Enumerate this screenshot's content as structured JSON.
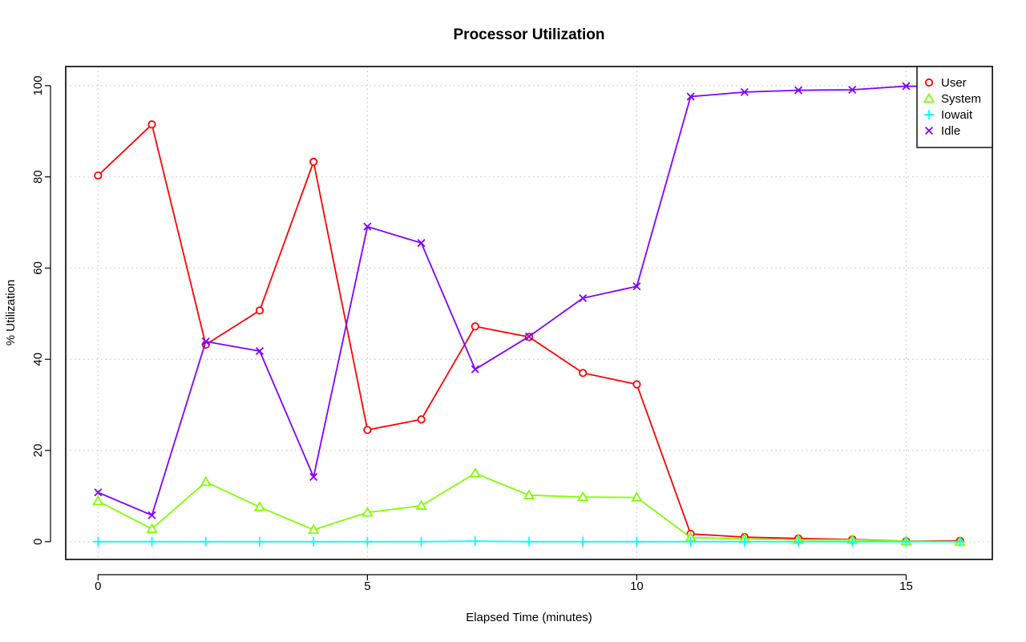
{
  "chart_data": {
    "type": "line",
    "title": "Processor Utilization",
    "xlabel": "Elapsed Time (minutes)",
    "ylabel": "% Utilization",
    "x": [
      0,
      1,
      2,
      3,
      4,
      5,
      6,
      7,
      8,
      9,
      10,
      11,
      12,
      13,
      14,
      15,
      16
    ],
    "xlim": [
      -0.6,
      16.6
    ],
    "ylim": [
      -3.9,
      104.2
    ],
    "xticks": [
      0,
      5,
      10,
      15
    ],
    "yticks": [
      0,
      20,
      40,
      60,
      80,
      100
    ],
    "xtick_labels": [
      "0",
      "5",
      "10",
      "15"
    ],
    "ytick_labels": [
      "0",
      "20",
      "40",
      "60",
      "80",
      "100"
    ],
    "grid": true,
    "legend_position": "top-right",
    "series": [
      {
        "name": "User",
        "color": "#ff0000",
        "marker": "circle",
        "values": [
          80.3,
          91.5,
          43.2,
          50.7,
          83.3,
          24.5,
          26.8,
          47.2,
          44.9,
          37.0,
          34.5,
          1.7,
          1.0,
          0.7,
          0.5,
          0.1,
          0.2
        ]
      },
      {
        "name": "System",
        "color": "#80ff00",
        "marker": "triangle",
        "values": [
          8.9,
          2.8,
          13.1,
          7.6,
          2.6,
          6.4,
          7.9,
          15.0,
          10.2,
          9.8,
          9.7,
          0.9,
          0.6,
          0.4,
          0.4,
          0.1,
          0.0
        ]
      },
      {
        "name": "Iowait",
        "color": "#00ffff",
        "marker": "plus",
        "values": [
          0.0,
          0.0,
          0.0,
          0.0,
          0.0,
          0.0,
          0.0,
          0.1,
          0.0,
          0.0,
          0.0,
          0.0,
          0.0,
          0.0,
          0.0,
          0.0,
          0.0
        ]
      },
      {
        "name": "Idle",
        "color": "#8000ff",
        "marker": "x",
        "values": [
          10.8,
          5.8,
          43.9,
          41.8,
          14.2,
          69.1,
          65.5,
          37.8,
          45.0,
          53.4,
          56.0,
          97.6,
          98.6,
          99.0,
          99.1,
          99.9,
          99.8
        ]
      }
    ]
  }
}
